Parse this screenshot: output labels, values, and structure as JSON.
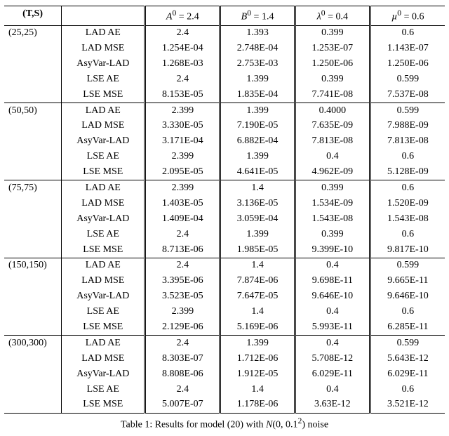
{
  "table": {
    "header": {
      "ts_label": "(T,S)",
      "param_cells": [
        {
          "var": "A",
          "sup": "0",
          "eq": " = 2.4"
        },
        {
          "var": "B",
          "sup": "0",
          "eq": " = 1.4"
        },
        {
          "var": "λ",
          "sup": "0",
          "eq": " = 0.4"
        },
        {
          "var": "µ",
          "sup": "0",
          "eq": " = 0.6"
        }
      ],
      "_label_col_blank": ""
    },
    "row_labels": [
      "LAD AE",
      "LAD MSE",
      "AsyVar-LAD",
      "LSE AE",
      "LSE MSE"
    ],
    "blocks": [
      {
        "ts": "(25,25)",
        "rows": [
          [
            "2.4",
            "1.393",
            "0.399",
            "0.6"
          ],
          [
            "1.254E-04",
            "2.748E-04",
            "1.253E-07",
            "1.143E-07"
          ],
          [
            "1.268E-03",
            "2.753E-03",
            "1.250E-06",
            "1.250E-06"
          ],
          [
            "2.4",
            "1.399",
            "0.399",
            "0.599"
          ],
          [
            "8.153E-05",
            "1.835E-04",
            "7.741E-08",
            "7.537E-08"
          ]
        ]
      },
      {
        "ts": "(50,50)",
        "rows": [
          [
            "2.399",
            "1.399",
            "0.4000",
            "0.599"
          ],
          [
            "3.330E-05",
            "7.190E-05",
            "7.635E-09",
            "7.988E-09"
          ],
          [
            "3.171E-04",
            "6.882E-04",
            "7.813E-08",
            "7.813E-08"
          ],
          [
            "2.399",
            "1.399",
            "0.4",
            "0.6"
          ],
          [
            "2.095E-05",
            "4.641E-05",
            "4.962E-09",
            "5.128E-09"
          ]
        ]
      },
      {
        "ts": "(75,75)",
        "rows": [
          [
            "2.399",
            "1.4",
            "0.399",
            "0.6"
          ],
          [
            "1.403E-05",
            "3.136E-05",
            "1.534E-09",
            "1.520E-09"
          ],
          [
            "1.409E-04",
            "3.059E-04",
            "1.543E-08",
            "1.543E-08"
          ],
          [
            "2.4",
            "1.399",
            "0.399",
            "0.6"
          ],
          [
            "8.713E-06",
            "1.985E-05",
            "9.399E-10",
            "9.817E-10"
          ]
        ]
      },
      {
        "ts": "(150,150)",
        "rows": [
          [
            "2.4",
            "1.4",
            "0.4",
            "0.599"
          ],
          [
            "3.395E-06",
            "7.874E-06",
            "9.698E-11",
            "9.665E-11"
          ],
          [
            "3.523E-05",
            "7.647E-05",
            "9.646E-10",
            "9.646E-10"
          ],
          [
            "2.399",
            "1.4",
            "0.4",
            "0.6"
          ],
          [
            "2.129E-06",
            "5.169E-06",
            "5.993E-11",
            "6.285E-11"
          ]
        ]
      },
      {
        "ts": "(300,300)",
        "rows": [
          [
            "2.4",
            "1.399",
            "0.4",
            "0.599"
          ],
          [
            "8.303E-07",
            "1.712E-06",
            "5.708E-12",
            "5.643E-12"
          ],
          [
            "8.808E-06",
            "1.912E-05",
            "6.029E-11",
            "6.029E-11"
          ],
          [
            "2.4",
            "1.4",
            "0.4",
            "0.6"
          ],
          [
            "5.007E-07",
            "1.178E-06",
            "3.63E-12",
            "3.521E-12"
          ]
        ]
      }
    ],
    "caption_prefix": "Table 1: Results for model (20) with ",
    "caption_dist": "N",
    "caption_args": "(0, 0.1",
    "caption_exp": "2",
    "caption_close": ")",
    "caption_suffix": " noise",
    "style": {
      "font_family": "Times New Roman",
      "font_size_pt": 11,
      "border_color": "#000000",
      "background_color": "#ffffff",
      "text_color": "#000000"
    }
  }
}
